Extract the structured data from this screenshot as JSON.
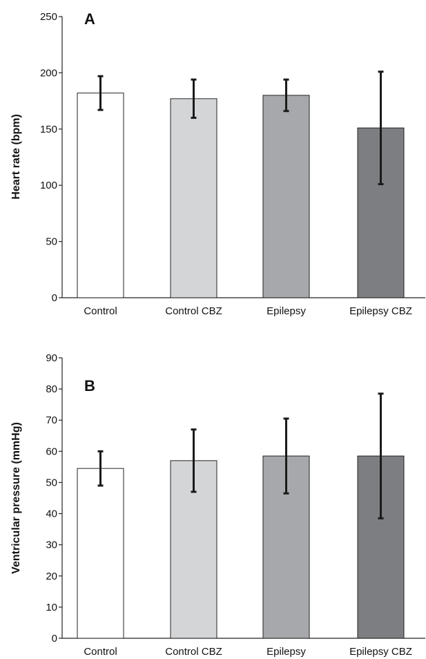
{
  "chart_data": [
    {
      "type": "bar",
      "panel_label": "A",
      "ylabel": "Heart rate (bpm)",
      "categories": [
        "Control",
        "Control CBZ",
        "Epilepsy",
        "Epilepsy CBZ"
      ],
      "values": [
        182,
        177,
        180,
        151
      ],
      "error": [
        15,
        17,
        14,
        50
      ],
      "ylim": [
        0,
        250
      ],
      "yticks": [
        0,
        50,
        100,
        150,
        200,
        250
      ],
      "colors": [
        "#ffffff",
        "#d4d5d7",
        "#a7a8ab",
        "#7d7e81"
      ]
    },
    {
      "type": "bar",
      "panel_label": "B",
      "ylabel": "Ventricular pressure (mmHg)",
      "categories": [
        "Control",
        "Control CBZ",
        "Epilepsy",
        "Epilepsy CBZ"
      ],
      "values": [
        54.5,
        57,
        58.5,
        58.5
      ],
      "error": [
        5.5,
        10,
        12,
        20
      ],
      "ylim": [
        0,
        90
      ],
      "yticks": [
        0,
        10,
        20,
        30,
        40,
        50,
        60,
        70,
        80,
        90
      ],
      "colors": [
        "#ffffff",
        "#d4d5d7",
        "#a7a8ab",
        "#7d7e81"
      ]
    }
  ]
}
